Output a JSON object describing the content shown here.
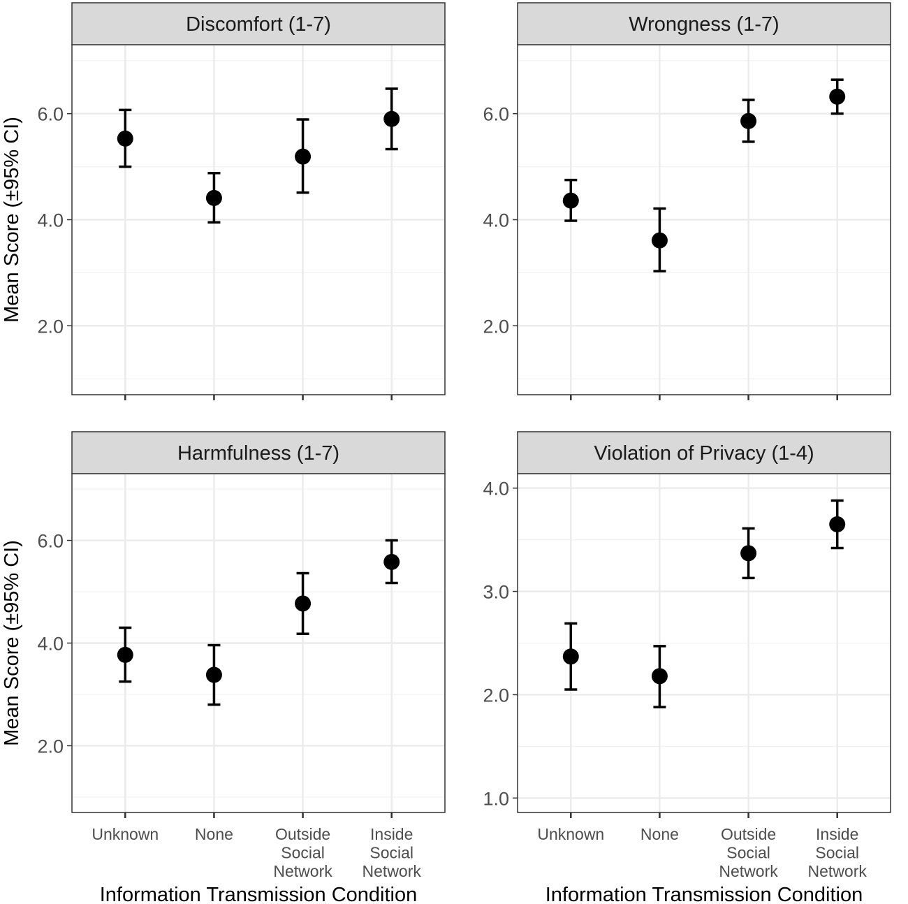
{
  "chart_data": [
    {
      "type": "scatter",
      "title": "Discomfort (1-7)",
      "categories": [
        "Unknown",
        "None",
        "Outside Social Network",
        "Inside Social Network"
      ],
      "category_labels": [
        [
          "Unknown"
        ],
        [
          "None"
        ],
        [
          "Outside",
          "Social",
          "Network"
        ],
        [
          "Inside",
          "Social",
          "Network"
        ]
      ],
      "series": [
        {
          "means": [
            5.53,
            4.41,
            5.19,
            5.9
          ],
          "ci_low": [
            5.0,
            3.95,
            4.51,
            5.33
          ],
          "ci_high": [
            6.07,
            4.88,
            5.89,
            6.47
          ]
        }
      ],
      "ylabel": "Mean Score (±95% CI)",
      "xlabel": "Information Transmission Condition",
      "ylim": [
        0.7,
        7.3
      ],
      "yticks": [
        2.0,
        4.0,
        6.0
      ],
      "ytick_labels": [
        "2.0",
        "4.0",
        "6.0"
      ],
      "show_x_ticklabels": false,
      "grid": true
    },
    {
      "type": "scatter",
      "title": "Wrongness (1-7)",
      "categories": [
        "Unknown",
        "None",
        "Outside Social Network",
        "Inside Social Network"
      ],
      "category_labels": [
        [
          "Unknown"
        ],
        [
          "None"
        ],
        [
          "Outside",
          "Social",
          "Network"
        ],
        [
          "Inside",
          "Social",
          "Network"
        ]
      ],
      "series": [
        {
          "means": [
            4.36,
            3.61,
            5.86,
            6.32
          ],
          "ci_low": [
            3.98,
            3.03,
            5.47,
            6.0
          ],
          "ci_high": [
            4.75,
            4.21,
            6.26,
            6.64
          ]
        }
      ],
      "ylabel": "",
      "xlabel": "Information Transmission Condition",
      "ylim": [
        0.7,
        7.3
      ],
      "yticks": [
        2.0,
        4.0,
        6.0
      ],
      "ytick_labels": [
        "2.0",
        "4.0",
        "6.0"
      ],
      "show_x_ticklabels": false,
      "grid": true
    },
    {
      "type": "scatter",
      "title": "Harmfulness (1-7)",
      "categories": [
        "Unknown",
        "None",
        "Outside Social Network",
        "Inside Social Network"
      ],
      "category_labels": [
        [
          "Unknown"
        ],
        [
          "None"
        ],
        [
          "Outside",
          "Social",
          "Network"
        ],
        [
          "Inside",
          "Social",
          "Network"
        ]
      ],
      "series": [
        {
          "means": [
            3.77,
            3.38,
            4.77,
            5.58
          ],
          "ci_low": [
            3.25,
            2.8,
            4.18,
            5.17
          ],
          "ci_high": [
            4.3,
            3.96,
            5.36,
            6.0
          ]
        }
      ],
      "ylabel": "Mean Score (±95% CI)",
      "xlabel": "Information Transmission Condition",
      "ylim": [
        0.7,
        7.3
      ],
      "yticks": [
        2.0,
        4.0,
        6.0
      ],
      "ytick_labels": [
        "2.0",
        "4.0",
        "6.0"
      ],
      "show_x_ticklabels": true,
      "grid": true
    },
    {
      "type": "scatter",
      "title": "Violation of Privacy (1-4)",
      "categories": [
        "Unknown",
        "None",
        "Outside Social Network",
        "Inside Social Network"
      ],
      "category_labels": [
        [
          "Unknown"
        ],
        [
          "None"
        ],
        [
          "Outside",
          "Social",
          "Network"
        ],
        [
          "Inside",
          "Social",
          "Network"
        ]
      ],
      "series": [
        {
          "means": [
            2.37,
            2.18,
            3.37,
            3.65
          ],
          "ci_low": [
            2.05,
            1.88,
            3.13,
            3.42
          ],
          "ci_high": [
            2.69,
            2.47,
            3.61,
            3.88
          ]
        }
      ],
      "ylabel": "",
      "xlabel": "Information Transmission Condition",
      "ylim": [
        0.86,
        4.14
      ],
      "yticks": [
        1.0,
        2.0,
        3.0,
        4.0
      ],
      "ytick_labels": [
        "1.0",
        "2.0",
        "3.0",
        "4.0"
      ],
      "show_x_ticklabels": true,
      "grid": true
    }
  ],
  "colors": {
    "point": "#000000",
    "strip_fill": "#d9d9d9",
    "grid_major": "#ebebeb",
    "grid_minor": "#f2f2f2",
    "panel_border": "#333333",
    "tick_text": "#4d4d4d",
    "title_text": "#1a1a1a"
  }
}
